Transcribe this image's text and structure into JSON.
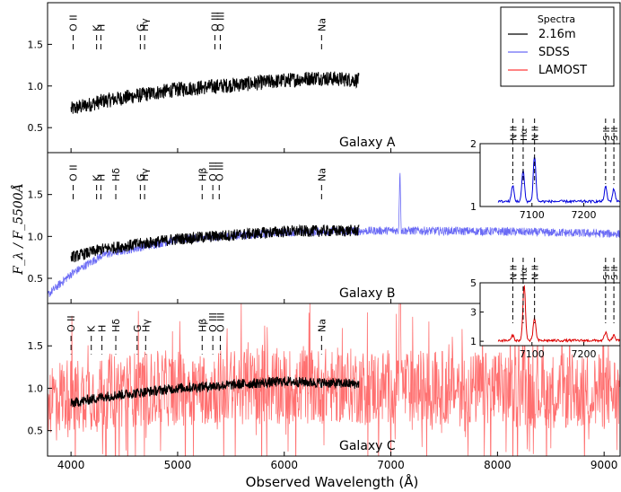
{
  "chart_data": {
    "type": "line",
    "xlabel": "Observed Wavelength (Å)",
    "ylabel": "F_λ / F_5500Å",
    "xlim": [
      3780,
      9150
    ],
    "x_ticks": [
      4000,
      5000,
      6000,
      7000,
      8000,
      9000
    ],
    "y_ticks": [
      0.5,
      1.0,
      1.5
    ],
    "legend": {
      "title": "Spectra",
      "placement": "top-right",
      "entries": [
        {
          "label": "2.16m",
          "color": "#000000"
        },
        {
          "label": "SDSS",
          "color": "#6b6bf5"
        },
        {
          "label": "LAMOST",
          "color": "#ff3b3b"
        }
      ]
    },
    "panels": [
      {
        "title": "Galaxy A",
        "ylim": [
          0.2,
          2.0
        ],
        "lines": [
          {
            "label": "O II",
            "x": 4020
          },
          {
            "label": "K",
            "x": 4240
          },
          {
            "label": "H",
            "x": 4280
          },
          {
            "label": "G",
            "x": 4650
          },
          {
            "label": "Hγ",
            "x": 4690
          },
          {
            "label": "O III",
            "x": 5350
          },
          {
            "label": "O III",
            "x": 5400
          },
          {
            "label": "Na",
            "x": 6350
          }
        ],
        "series": [
          {
            "name": "2.16m",
            "color": "#000000",
            "x": [
              4000,
              4300,
              5000,
              5600,
              6300,
              6700
            ],
            "y": [
              0.72,
              0.82,
              0.96,
              1.02,
              1.1,
              1.07
            ],
            "noise": 0.09
          }
        ]
      },
      {
        "title": "Galaxy B",
        "ylim": [
          0.2,
          2.0
        ],
        "lines": [
          {
            "label": "O II",
            "x": 4020
          },
          {
            "label": "K",
            "x": 4240
          },
          {
            "label": "H",
            "x": 4280
          },
          {
            "label": "Hδ",
            "x": 4420
          },
          {
            "label": "G",
            "x": 4650
          },
          {
            "label": "Hγ",
            "x": 4690
          },
          {
            "label": "Hβ",
            "x": 5230
          },
          {
            "label": "O III",
            "x": 5330
          },
          {
            "label": "O III",
            "x": 5390
          },
          {
            "label": "Na",
            "x": 6350
          }
        ],
        "series": [
          {
            "name": "SDSS",
            "color": "#6b6bf5",
            "x": [
              3780,
              4000,
              4300,
              5000,
              6000,
              7000,
              8000,
              9150
            ],
            "y": [
              0.3,
              0.55,
              0.78,
              0.96,
              1.05,
              1.07,
              1.06,
              1.03
            ],
            "noise": 0.05
          },
          {
            "name": "2.16m",
            "color": "#000000",
            "x": [
              4000,
              4300,
              5000,
              6000,
              6700
            ],
            "y": [
              0.75,
              0.85,
              0.97,
              1.06,
              1.07
            ],
            "noise": 0.07
          }
        ]
      },
      {
        "title": "Galaxy C",
        "ylim": [
          0.2,
          2.0
        ],
        "lines": [
          {
            "label": "O II",
            "x": 4000
          },
          {
            "label": "K",
            "x": 4190
          },
          {
            "label": "H",
            "x": 4290
          },
          {
            "label": "Hδ",
            "x": 4420
          },
          {
            "label": "G",
            "x": 4620
          },
          {
            "label": "Hγ",
            "x": 4700
          },
          {
            "label": "Hβ",
            "x": 5230
          },
          {
            "label": "O III",
            "x": 5330
          },
          {
            "label": "O III",
            "x": 5400
          },
          {
            "label": "Na",
            "x": 6350
          }
        ],
        "series": [
          {
            "name": "LAMOST",
            "color": "#ff7070",
            "x": [
              3780,
              4500,
              5500,
              6500,
              7500,
              8500,
              9150
            ],
            "y": [
              0.9,
              0.98,
              1.02,
              1.03,
              1.0,
              0.97,
              0.95
            ],
            "noise": 0.45
          },
          {
            "name": "2.16m",
            "color": "#000000",
            "x": [
              4000,
              4300,
              5000,
              6000,
              6700
            ],
            "y": [
              0.82,
              0.9,
              1.0,
              1.08,
              1.05
            ],
            "noise": 0.06
          }
        ]
      }
    ],
    "insets": [
      {
        "xlim": [
          7000,
          7270
        ],
        "ylim": [
          1,
          2
        ],
        "x_ticks": [
          7100,
          7200
        ],
        "y_ticks": [
          1,
          2
        ],
        "color": "#0000dd",
        "lines": [
          {
            "label": "N II",
            "x": 7063
          },
          {
            "label": "Hα",
            "x": 7083
          },
          {
            "label": "N II",
            "x": 7105
          },
          {
            "label": "S II",
            "x": 7242
          },
          {
            "label": "S II",
            "x": 7258
          }
        ],
        "peaks": [
          {
            "x": 7063,
            "y": 1.3
          },
          {
            "x": 7083,
            "y": 1.55
          },
          {
            "x": 7105,
            "y": 1.78
          },
          {
            "x": 7242,
            "y": 1.28
          },
          {
            "x": 7258,
            "y": 1.25
          }
        ]
      },
      {
        "xlim": [
          7000,
          7270
        ],
        "ylim": [
          0.7,
          5
        ],
        "x_ticks": [
          7100,
          7200
        ],
        "y_ticks": [
          1,
          3,
          5
        ],
        "color": "#dd0000",
        "lines": [
          {
            "label": "N II",
            "x": 7063
          },
          {
            "label": "Hα",
            "x": 7083
          },
          {
            "label": "N II",
            "x": 7105
          },
          {
            "label": "S II",
            "x": 7242
          },
          {
            "label": "S II",
            "x": 7258
          }
        ],
        "peaks": [
          {
            "x": 7063,
            "y": 1.4
          },
          {
            "x": 7085,
            "y": 4.9
          },
          {
            "x": 7105,
            "y": 2.6
          },
          {
            "x": 7242,
            "y": 1.6
          },
          {
            "x": 7258,
            "y": 1.4
          }
        ]
      }
    ]
  }
}
